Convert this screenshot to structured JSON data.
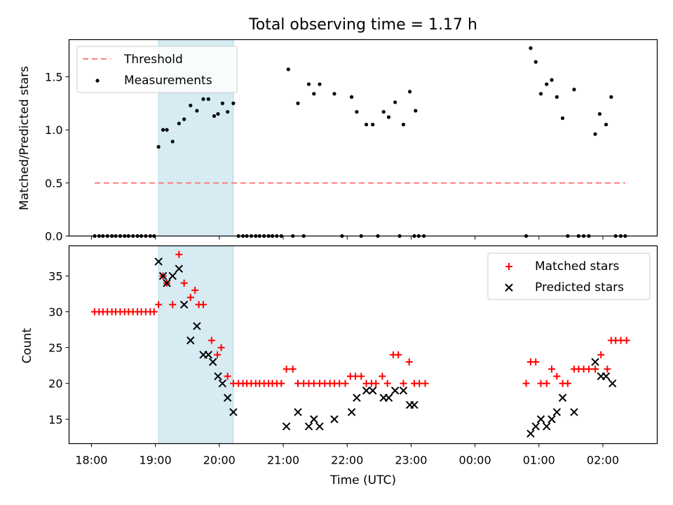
{
  "chart_data": [
    {
      "type": "scatter",
      "title": "Total observing time = 1.17 h",
      "xlabel": "",
      "ylabel": "Matched/Predicted stars",
      "ylim": [
        0,
        1.85
      ],
      "yticks": [
        0.0,
        0.5,
        1.0,
        1.5
      ],
      "ytick_labels": [
        "0.0",
        "0.5",
        "1.0",
        "1.5"
      ],
      "x_unit": "hours since 18:00 UTC",
      "grid": false,
      "legend_placement": "upper-left",
      "shaded_interval": [
        19.05,
        20.22
      ],
      "shaded_color": "#add8e6",
      "threshold": {
        "name": "Threshold",
        "value": 0.5,
        "x_range": [
          18.05,
          26.35
        ],
        "color": "#ff7f7f",
        "style": "dashed"
      },
      "series": [
        {
          "name": "Measurements",
          "color": "#000000",
          "marker": "dot",
          "points": [
            [
              18.05,
              0
            ],
            [
              18.12,
              0
            ],
            [
              18.18,
              0
            ],
            [
              18.25,
              0
            ],
            [
              18.32,
              0
            ],
            [
              18.38,
              0
            ],
            [
              18.45,
              0
            ],
            [
              18.52,
              0
            ],
            [
              18.58,
              0
            ],
            [
              18.65,
              0
            ],
            [
              18.72,
              0
            ],
            [
              18.78,
              0
            ],
            [
              18.85,
              0
            ],
            [
              18.92,
              0
            ],
            [
              18.98,
              0
            ],
            [
              19.05,
              0.84
            ],
            [
              19.12,
              1.0
            ],
            [
              19.18,
              1.0
            ],
            [
              19.27,
              0.89
            ],
            [
              19.37,
              1.06
            ],
            [
              19.45,
              1.1
            ],
            [
              19.55,
              1.23
            ],
            [
              19.65,
              1.18
            ],
            [
              19.75,
              1.29
            ],
            [
              19.83,
              1.29
            ],
            [
              19.92,
              1.13
            ],
            [
              19.98,
              1.15
            ],
            [
              20.05,
              1.25
            ],
            [
              20.13,
              1.17
            ],
            [
              20.22,
              1.25
            ],
            [
              20.3,
              0
            ],
            [
              20.37,
              0
            ],
            [
              20.43,
              0
            ],
            [
              20.5,
              0
            ],
            [
              20.57,
              0
            ],
            [
              20.63,
              0
            ],
            [
              20.7,
              0
            ],
            [
              20.77,
              0
            ],
            [
              20.83,
              0
            ],
            [
              20.9,
              0
            ],
            [
              20.97,
              0
            ],
            [
              21.08,
              1.57
            ],
            [
              21.15,
              0
            ],
            [
              21.23,
              1.25
            ],
            [
              21.32,
              0
            ],
            [
              21.4,
              1.43
            ],
            [
              21.48,
              1.34
            ],
            [
              21.57,
              1.43
            ],
            [
              21.8,
              1.34
            ],
            [
              21.92,
              0
            ],
            [
              22.07,
              1.31
            ],
            [
              22.15,
              1.17
            ],
            [
              22.22,
              0
            ],
            [
              22.3,
              1.05
            ],
            [
              22.4,
              1.05
            ],
            [
              22.48,
              0
            ],
            [
              22.57,
              1.17
            ],
            [
              22.65,
              1.12
            ],
            [
              22.75,
              1.26
            ],
            [
              22.82,
              0
            ],
            [
              22.88,
              1.05
            ],
            [
              22.98,
              1.36
            ],
            [
              23.05,
              0
            ],
            [
              23.07,
              1.18
            ],
            [
              23.12,
              0
            ],
            [
              23.2,
              0
            ],
            [
              24.8,
              0
            ],
            [
              24.87,
              1.77
            ],
            [
              24.95,
              1.64
            ],
            [
              25.03,
              1.34
            ],
            [
              25.12,
              1.43
            ],
            [
              25.2,
              1.47
            ],
            [
              25.28,
              1.31
            ],
            [
              25.37,
              1.11
            ],
            [
              25.45,
              0
            ],
            [
              25.55,
              1.38
            ],
            [
              25.62,
              0
            ],
            [
              25.7,
              0
            ],
            [
              25.78,
              0
            ],
            [
              25.88,
              0.96
            ],
            [
              25.95,
              1.15
            ],
            [
              26.05,
              1.05
            ],
            [
              26.13,
              1.31
            ],
            [
              26.2,
              0
            ],
            [
              26.28,
              0
            ],
            [
              26.35,
              0
            ]
          ]
        }
      ]
    },
    {
      "type": "scatter",
      "title": "",
      "xlabel": "Time (UTC)",
      "ylabel": "Count",
      "ylim": [
        11.6,
        39.2
      ],
      "yticks": [
        15,
        20,
        25,
        30,
        35
      ],
      "ytick_labels": [
        "15",
        "20",
        "25",
        "30",
        "35"
      ],
      "xlim": [
        17.65,
        26.85
      ],
      "xticks": [
        18,
        19,
        20,
        21,
        22,
        23,
        24,
        25,
        26
      ],
      "xtick_labels": [
        "18:00",
        "19:00",
        "20:00",
        "21:00",
        "22:00",
        "23:00",
        "00:00",
        "01:00",
        "02:00"
      ],
      "x_unit": "hours since 18:00 UTC",
      "grid": false,
      "legend_placement": "upper-right",
      "shaded_interval": [
        19.05,
        20.22
      ],
      "shaded_color": "#add8e6",
      "series": [
        {
          "name": "Matched stars",
          "color": "#ff0000",
          "marker": "plus",
          "points": [
            [
              18.05,
              30
            ],
            [
              18.12,
              30
            ],
            [
              18.18,
              30
            ],
            [
              18.25,
              30
            ],
            [
              18.32,
              30
            ],
            [
              18.38,
              30
            ],
            [
              18.45,
              30
            ],
            [
              18.52,
              30
            ],
            [
              18.58,
              30
            ],
            [
              18.65,
              30
            ],
            [
              18.72,
              30
            ],
            [
              18.78,
              30
            ],
            [
              18.85,
              30
            ],
            [
              18.92,
              30
            ],
            [
              18.98,
              30
            ],
            [
              19.05,
              31
            ],
            [
              19.12,
              35
            ],
            [
              19.18,
              34
            ],
            [
              19.27,
              31
            ],
            [
              19.37,
              38
            ],
            [
              19.45,
              34
            ],
            [
              19.55,
              32
            ],
            [
              19.62,
              33
            ],
            [
              19.68,
              31
            ],
            [
              19.75,
              31
            ],
            [
              19.88,
              26
            ],
            [
              19.97,
              24
            ],
            [
              20.03,
              25
            ],
            [
              20.13,
              21
            ],
            [
              20.22,
              20
            ],
            [
              20.3,
              20
            ],
            [
              20.37,
              20
            ],
            [
              20.43,
              20
            ],
            [
              20.5,
              20
            ],
            [
              20.57,
              20
            ],
            [
              20.63,
              20
            ],
            [
              20.7,
              20
            ],
            [
              20.77,
              20
            ],
            [
              20.83,
              20
            ],
            [
              20.9,
              20
            ],
            [
              20.97,
              20
            ],
            [
              21.05,
              22
            ],
            [
              21.15,
              22
            ],
            [
              21.23,
              20
            ],
            [
              21.32,
              20
            ],
            [
              21.4,
              20
            ],
            [
              21.48,
              20
            ],
            [
              21.57,
              20
            ],
            [
              21.65,
              20
            ],
            [
              21.73,
              20
            ],
            [
              21.8,
              20
            ],
            [
              21.88,
              20
            ],
            [
              21.97,
              20
            ],
            [
              22.05,
              21
            ],
            [
              22.13,
              21
            ],
            [
              22.22,
              21
            ],
            [
              22.3,
              20
            ],
            [
              22.38,
              20
            ],
            [
              22.45,
              20
            ],
            [
              22.55,
              21
            ],
            [
              22.63,
              20
            ],
            [
              22.72,
              24
            ],
            [
              22.8,
              24
            ],
            [
              22.88,
              20
            ],
            [
              22.97,
              23
            ],
            [
              23.05,
              20
            ],
            [
              23.13,
              20
            ],
            [
              23.22,
              20
            ],
            [
              24.8,
              20
            ],
            [
              24.87,
              23
            ],
            [
              24.95,
              23
            ],
            [
              25.03,
              20
            ],
            [
              25.12,
              20
            ],
            [
              25.2,
              22
            ],
            [
              25.28,
              21
            ],
            [
              25.37,
              20
            ],
            [
              25.45,
              20
            ],
            [
              25.55,
              22
            ],
            [
              25.62,
              22
            ],
            [
              25.7,
              22
            ],
            [
              25.78,
              22
            ],
            [
              25.88,
              22
            ],
            [
              25.97,
              24
            ],
            [
              26.07,
              22
            ],
            [
              26.13,
              26
            ],
            [
              26.2,
              26
            ],
            [
              26.28,
              26
            ],
            [
              26.37,
              26
            ]
          ]
        },
        {
          "name": "Predicted stars",
          "color": "#000000",
          "marker": "cross",
          "points": [
            [
              19.05,
              37
            ],
            [
              19.12,
              35
            ],
            [
              19.18,
              34
            ],
            [
              19.27,
              35
            ],
            [
              19.37,
              36
            ],
            [
              19.45,
              31
            ],
            [
              19.55,
              26
            ],
            [
              19.65,
              28
            ],
            [
              19.75,
              24
            ],
            [
              19.83,
              24
            ],
            [
              19.9,
              23
            ],
            [
              19.98,
              21
            ],
            [
              20.05,
              20
            ],
            [
              20.13,
              18
            ],
            [
              20.22,
              16
            ],
            [
              21.05,
              14
            ],
            [
              21.23,
              16
            ],
            [
              21.4,
              14
            ],
            [
              21.48,
              15
            ],
            [
              21.57,
              14
            ],
            [
              21.8,
              15
            ],
            [
              22.07,
              16
            ],
            [
              22.15,
              18
            ],
            [
              22.3,
              19
            ],
            [
              22.4,
              19
            ],
            [
              22.57,
              18
            ],
            [
              22.65,
              18
            ],
            [
              22.75,
              19
            ],
            [
              22.88,
              19
            ],
            [
              22.98,
              17
            ],
            [
              23.05,
              17
            ],
            [
              24.87,
              13
            ],
            [
              24.95,
              14
            ],
            [
              25.03,
              15
            ],
            [
              25.12,
              14
            ],
            [
              25.2,
              15
            ],
            [
              25.28,
              16
            ],
            [
              25.37,
              18
            ],
            [
              25.55,
              16
            ],
            [
              25.88,
              23
            ],
            [
              25.97,
              21
            ],
            [
              26.05,
              21
            ],
            [
              26.15,
              20
            ]
          ]
        }
      ]
    }
  ]
}
